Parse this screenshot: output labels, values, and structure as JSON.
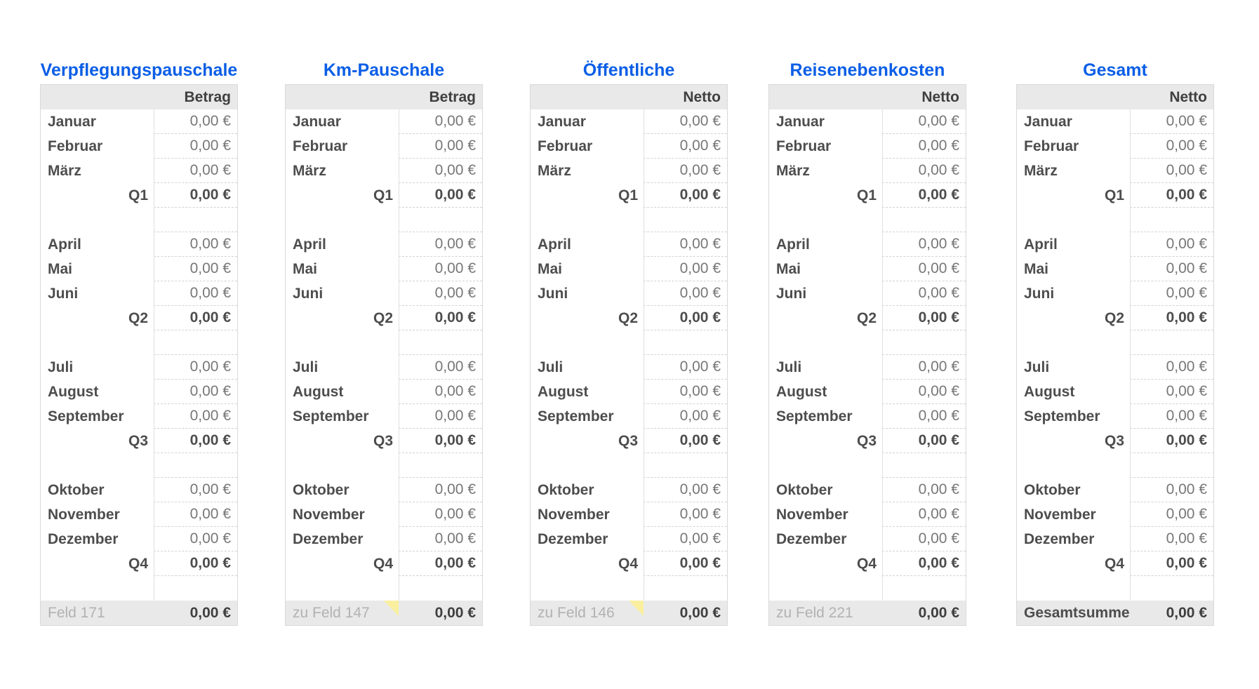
{
  "theme": {
    "title_color": "#0b5ee6",
    "comment_marker_color": "#f9ef9e",
    "header_footer_band_color": "#e9e9e9"
  },
  "tables": [
    {
      "id": "verpflegungspauschale",
      "title": "Verpflegungspauschale",
      "value_header": "Betrag",
      "rows": [
        {
          "kind": "month",
          "label": "Januar",
          "value": "0,00 €"
        },
        {
          "kind": "month",
          "label": "Februar",
          "value": "0,00 €"
        },
        {
          "kind": "month",
          "label": "März",
          "value": "0,00 €"
        },
        {
          "kind": "quarter",
          "label": "Q1",
          "value": "0,00 €"
        },
        {
          "kind": "spacer",
          "label": "",
          "value": ""
        },
        {
          "kind": "month",
          "label": "April",
          "value": "0,00 €"
        },
        {
          "kind": "month",
          "label": "Mai",
          "value": "0,00 €"
        },
        {
          "kind": "month",
          "label": "Juni",
          "value": "0,00 €"
        },
        {
          "kind": "quarter",
          "label": "Q2",
          "value": "0,00 €"
        },
        {
          "kind": "spacer",
          "label": "",
          "value": ""
        },
        {
          "kind": "month",
          "label": "Juli",
          "value": "0,00 €"
        },
        {
          "kind": "month",
          "label": "August",
          "value": "0,00 €"
        },
        {
          "kind": "month",
          "label": "September",
          "value": "0,00 €"
        },
        {
          "kind": "quarter",
          "label": "Q3",
          "value": "0,00 €"
        },
        {
          "kind": "spacer",
          "label": "",
          "value": ""
        },
        {
          "kind": "month",
          "label": "Oktober",
          "value": "0,00 €"
        },
        {
          "kind": "month",
          "label": "November",
          "value": "0,00 €"
        },
        {
          "kind": "month",
          "label": "Dezember",
          "value": "0,00 €"
        },
        {
          "kind": "quarter",
          "label": "Q4",
          "value": "0,00 €"
        },
        {
          "kind": "spacer",
          "label": "",
          "value": ""
        }
      ],
      "footer": {
        "label": "Feld 171",
        "value": "0,00 €",
        "bold_label": false,
        "comment_marker": false
      }
    },
    {
      "id": "km-pauschale",
      "title": "Km-Pauschale",
      "value_header": "Betrag",
      "rows": [
        {
          "kind": "month",
          "label": "Januar",
          "value": "0,00 €"
        },
        {
          "kind": "month",
          "label": "Februar",
          "value": "0,00 €"
        },
        {
          "kind": "month",
          "label": "März",
          "value": "0,00 €"
        },
        {
          "kind": "quarter",
          "label": "Q1",
          "value": "0,00 €"
        },
        {
          "kind": "spacer",
          "label": "",
          "value": ""
        },
        {
          "kind": "month",
          "label": "April",
          "value": "0,00 €"
        },
        {
          "kind": "month",
          "label": "Mai",
          "value": "0,00 €"
        },
        {
          "kind": "month",
          "label": "Juni",
          "value": "0,00 €"
        },
        {
          "kind": "quarter",
          "label": "Q2",
          "value": "0,00 €"
        },
        {
          "kind": "spacer",
          "label": "",
          "value": ""
        },
        {
          "kind": "month",
          "label": "Juli",
          "value": "0,00 €"
        },
        {
          "kind": "month",
          "label": "August",
          "value": "0,00 €"
        },
        {
          "kind": "month",
          "label": "September",
          "value": "0,00 €"
        },
        {
          "kind": "quarter",
          "label": "Q3",
          "value": "0,00 €"
        },
        {
          "kind": "spacer",
          "label": "",
          "value": ""
        },
        {
          "kind": "month",
          "label": "Oktober",
          "value": "0,00 €"
        },
        {
          "kind": "month",
          "label": "November",
          "value": "0,00 €"
        },
        {
          "kind": "month",
          "label": "Dezember",
          "value": "0,00 €"
        },
        {
          "kind": "quarter",
          "label": "Q4",
          "value": "0,00 €"
        },
        {
          "kind": "spacer",
          "label": "",
          "value": ""
        }
      ],
      "footer": {
        "label": "zu Feld 147",
        "value": "0,00 €",
        "bold_label": false,
        "comment_marker": true
      }
    },
    {
      "id": "oeffentliche",
      "title": "Öffentliche",
      "value_header": "Netto",
      "rows": [
        {
          "kind": "month",
          "label": "Januar",
          "value": "0,00 €"
        },
        {
          "kind": "month",
          "label": "Februar",
          "value": "0,00 €"
        },
        {
          "kind": "month",
          "label": "März",
          "value": "0,00 €"
        },
        {
          "kind": "quarter",
          "label": "Q1",
          "value": "0,00 €"
        },
        {
          "kind": "spacer",
          "label": "",
          "value": ""
        },
        {
          "kind": "month",
          "label": "April",
          "value": "0,00 €"
        },
        {
          "kind": "month",
          "label": "Mai",
          "value": "0,00 €"
        },
        {
          "kind": "month",
          "label": "Juni",
          "value": "0,00 €"
        },
        {
          "kind": "quarter",
          "label": "Q2",
          "value": "0,00 €"
        },
        {
          "kind": "spacer",
          "label": "",
          "value": ""
        },
        {
          "kind": "month",
          "label": "Juli",
          "value": "0,00 €"
        },
        {
          "kind": "month",
          "label": "August",
          "value": "0,00 €"
        },
        {
          "kind": "month",
          "label": "September",
          "value": "0,00 €"
        },
        {
          "kind": "quarter",
          "label": "Q3",
          "value": "0,00 €"
        },
        {
          "kind": "spacer",
          "label": "",
          "value": ""
        },
        {
          "kind": "month",
          "label": "Oktober",
          "value": "0,00 €"
        },
        {
          "kind": "month",
          "label": "November",
          "value": "0,00 €"
        },
        {
          "kind": "month",
          "label": "Dezember",
          "value": "0,00 €"
        },
        {
          "kind": "quarter",
          "label": "Q4",
          "value": "0,00 €"
        },
        {
          "kind": "spacer",
          "label": "",
          "value": ""
        }
      ],
      "footer": {
        "label": "zu Feld 146",
        "value": "0,00 €",
        "bold_label": false,
        "comment_marker": true
      }
    },
    {
      "id": "reisenebenkosten",
      "title": "Reisenebenkosten",
      "value_header": "Netto",
      "rows": [
        {
          "kind": "month",
          "label": "Januar",
          "value": "0,00 €"
        },
        {
          "kind": "month",
          "label": "Februar",
          "value": "0,00 €"
        },
        {
          "kind": "month",
          "label": "März",
          "value": "0,00 €"
        },
        {
          "kind": "quarter",
          "label": "Q1",
          "value": "0,00 €"
        },
        {
          "kind": "spacer",
          "label": "",
          "value": ""
        },
        {
          "kind": "month",
          "label": "April",
          "value": "0,00 €"
        },
        {
          "kind": "month",
          "label": "Mai",
          "value": "0,00 €"
        },
        {
          "kind": "month",
          "label": "Juni",
          "value": "0,00 €"
        },
        {
          "kind": "quarter",
          "label": "Q2",
          "value": "0,00 €"
        },
        {
          "kind": "spacer",
          "label": "",
          "value": ""
        },
        {
          "kind": "month",
          "label": "Juli",
          "value": "0,00 €"
        },
        {
          "kind": "month",
          "label": "August",
          "value": "0,00 €"
        },
        {
          "kind": "month",
          "label": "September",
          "value": "0,00 €"
        },
        {
          "kind": "quarter",
          "label": "Q3",
          "value": "0,00 €"
        },
        {
          "kind": "spacer",
          "label": "",
          "value": ""
        },
        {
          "kind": "month",
          "label": "Oktober",
          "value": "0,00 €"
        },
        {
          "kind": "month",
          "label": "November",
          "value": "0,00 €"
        },
        {
          "kind": "month",
          "label": "Dezember",
          "value": "0,00 €"
        },
        {
          "kind": "quarter",
          "label": "Q4",
          "value": "0,00 €"
        },
        {
          "kind": "spacer",
          "label": "",
          "value": ""
        }
      ],
      "footer": {
        "label": "zu Feld 221",
        "value": "0,00 €",
        "bold_label": false,
        "comment_marker": false
      }
    },
    {
      "id": "gesamt",
      "title": "Gesamt",
      "value_header": "Netto",
      "rows": [
        {
          "kind": "month",
          "label": "Januar",
          "value": "0,00 €"
        },
        {
          "kind": "month",
          "label": "Februar",
          "value": "0,00 €"
        },
        {
          "kind": "month",
          "label": "März",
          "value": "0,00 €"
        },
        {
          "kind": "quarter",
          "label": "Q1",
          "value": "0,00 €"
        },
        {
          "kind": "spacer",
          "label": "",
          "value": ""
        },
        {
          "kind": "month",
          "label": "April",
          "value": "0,00 €"
        },
        {
          "kind": "month",
          "label": "Mai",
          "value": "0,00 €"
        },
        {
          "kind": "month",
          "label": "Juni",
          "value": "0,00 €"
        },
        {
          "kind": "quarter",
          "label": "Q2",
          "value": "0,00 €"
        },
        {
          "kind": "spacer",
          "label": "",
          "value": ""
        },
        {
          "kind": "month",
          "label": "Juli",
          "value": "0,00 €"
        },
        {
          "kind": "month",
          "label": "August",
          "value": "0,00 €"
        },
        {
          "kind": "month",
          "label": "September",
          "value": "0,00 €"
        },
        {
          "kind": "quarter",
          "label": "Q3",
          "value": "0,00 €"
        },
        {
          "kind": "spacer",
          "label": "",
          "value": ""
        },
        {
          "kind": "month",
          "label": "Oktober",
          "value": "0,00 €"
        },
        {
          "kind": "month",
          "label": "November",
          "value": "0,00 €"
        },
        {
          "kind": "month",
          "label": "Dezember",
          "value": "0,00 €"
        },
        {
          "kind": "quarter",
          "label": "Q4",
          "value": "0,00 €"
        },
        {
          "kind": "spacer",
          "label": "",
          "value": ""
        }
      ],
      "footer": {
        "label": "Gesamtsumme",
        "value": "0,00 €",
        "bold_label": true,
        "comment_marker": false
      }
    }
  ]
}
